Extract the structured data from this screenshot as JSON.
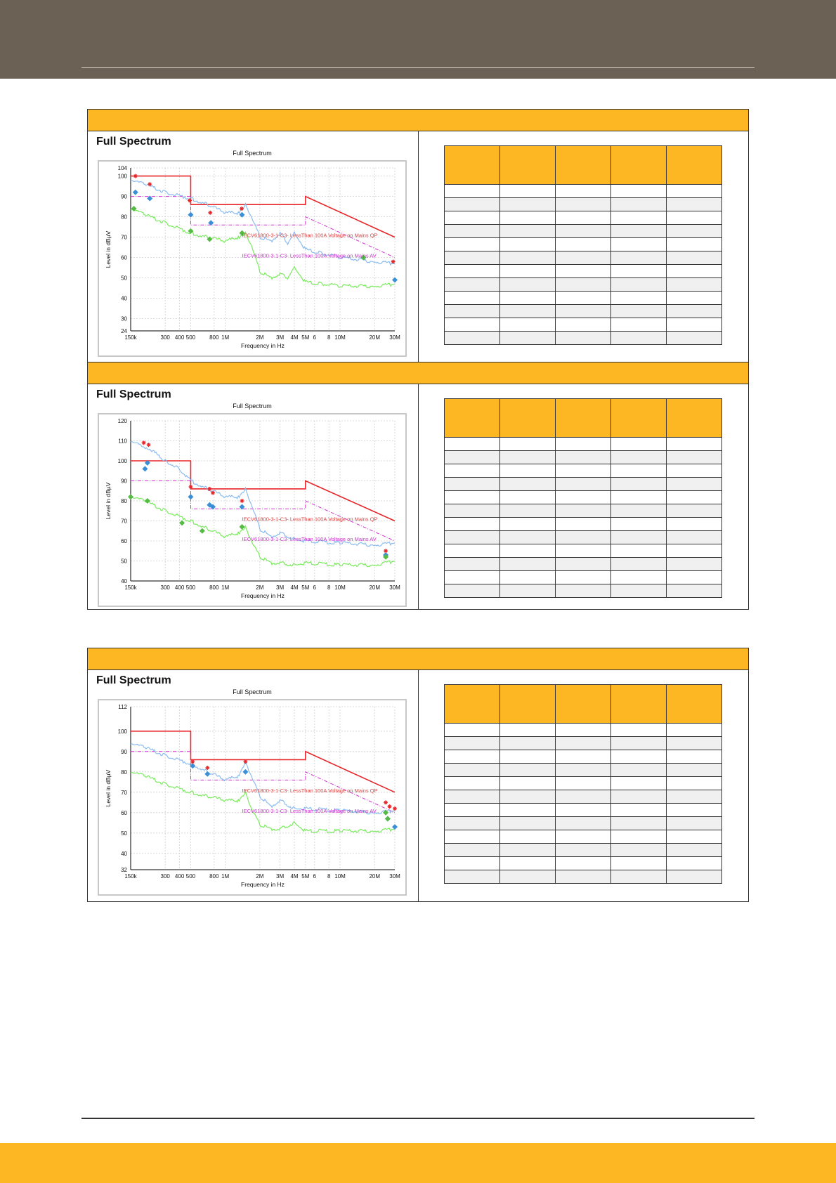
{
  "panels": [
    {
      "heading": "Full Spectrum",
      "chart_data": {
        "type": "line",
        "title": "Full Spectrum",
        "xlabel": "Frequency in Hz",
        "ylabel": "Level in dBµV",
        "xscale": "log",
        "xlim": [
          150000,
          30000000
        ],
        "ylim": [
          24,
          104
        ],
        "x_ticks": [
          "150k",
          "300",
          "400",
          "500",
          "800",
          "1M",
          "2M",
          "3M",
          "4M",
          "5M",
          "6",
          "8",
          "10M",
          "20M",
          "30M"
        ],
        "y_ticks": [
          24,
          30,
          40,
          50,
          60,
          70,
          80,
          90,
          100,
          104
        ],
        "annotations": [
          "IECV61800-3-1-C3- LessThan 100A Voltage on Mains QP",
          "IECV61800-3-1-C3- LessThan 100A Voltage on Mains AV"
        ],
        "series": [
          {
            "color": "#e8262a",
            "style": "limit",
            "x": [
              150000,
              500000,
              500000,
              5000000,
              5000000,
              30000000
            ],
            "y": [
              100,
              100,
              86,
              86,
              90,
              70
            ]
          },
          {
            "color": "#cc33cc",
            "style": "limit-dashed",
            "x": [
              150000,
              500000,
              500000,
              5000000,
              5000000,
              30000000
            ],
            "y": [
              90,
              90,
              76,
              76,
              80,
              60
            ]
          },
          {
            "color": "#8cbcf0",
            "style": "trace",
            "x": [
              150000,
              200000,
              300000,
              500000,
              700000,
              1000000,
              1300000,
              1500000,
              1700000,
              2000000,
              2500000,
              3000000,
              3500000,
              4000000,
              5000000,
              7000000,
              10000000,
              20000000,
              30000000
            ],
            "y": [
              98,
              96,
              92,
              89,
              86,
              82,
              82,
              86,
              80,
              70,
              68,
              72,
              67,
              72,
              64,
              62,
              60,
              58,
              57
            ]
          },
          {
            "color": "#7aeb5e",
            "style": "trace",
            "x": [
              150000,
              200000,
              300000,
              500000,
              700000,
              1000000,
              1300000,
              1500000,
              1700000,
              2000000,
              2500000,
              3000000,
              3500000,
              4000000,
              5000000,
              7000000,
              10000000,
              20000000,
              30000000
            ],
            "y": [
              84,
              81,
              77,
              72,
              70,
              68,
              70,
              72,
              66,
              53,
              50,
              52,
              50,
              55,
              48,
              47,
              46,
              46,
              47
            ]
          },
          {
            "color": "#3a8fd6",
            "style": "markers-diamond",
            "x": [
              165000,
              220000,
              500000,
              750000,
              1400000,
              30000000
            ],
            "y": [
              92,
              89,
              81,
              77,
              81,
              49
            ]
          },
          {
            "color": "#55bb44",
            "style": "markers-diamond",
            "x": [
              160000,
              500000,
              730000,
              1400000,
              16000000
            ],
            "y": [
              84,
              73,
              69,
              72,
              60
            ]
          },
          {
            "color": "#e8262a",
            "style": "markers-star",
            "x": [
              165000,
              220000,
              490000,
              740000,
              1390000,
              29000000
            ],
            "y": [
              100,
              96,
              88,
              82,
              84,
              58
            ]
          }
        ]
      }
    },
    {
      "heading": "Full Spectrum",
      "chart_data": {
        "type": "line",
        "title": "Full Spectrum",
        "xlabel": "Frequency in Hz",
        "ylabel": "Level in dBµV",
        "xscale": "log",
        "xlim": [
          150000,
          30000000
        ],
        "ylim": [
          40,
          120
        ],
        "x_ticks": [
          "150k",
          "300",
          "400",
          "500",
          "800",
          "1M",
          "2M",
          "3M",
          "4M",
          "5M",
          "6",
          "8",
          "10M",
          "20M",
          "30M"
        ],
        "y_ticks": [
          40,
          50,
          60,
          70,
          80,
          90,
          100,
          110,
          120
        ],
        "annotations": [
          "IECV61800-3-1-C3- LessThan 100A Voltage on Mains QP",
          "IECV61800-3-1-C3- LessThan 100A Voltage on Mains AV"
        ],
        "series": [
          {
            "color": "#e8262a",
            "style": "limit",
            "x": [
              150000,
              500000,
              500000,
              5000000,
              5000000,
              30000000
            ],
            "y": [
              100,
              100,
              86,
              86,
              90,
              70
            ]
          },
          {
            "color": "#cc33cc",
            "style": "limit-dashed",
            "x": [
              150000,
              500000,
              500000,
              5000000,
              5000000,
              30000000
            ],
            "y": [
              90,
              90,
              76,
              76,
              80,
              60
            ]
          },
          {
            "color": "#8cbcf0",
            "style": "trace",
            "x": [
              150000,
              180000,
              220000,
              300000,
              400000,
              500000,
              700000,
              1000000,
              1300000,
              1500000,
              1700000,
              2000000,
              2500000,
              3000000,
              4000000,
              5000000,
              10000000,
              20000000,
              30000000
            ],
            "y": [
              110,
              108,
              106,
              100,
              96,
              90,
              86,
              82,
              82,
              86,
              78,
              66,
              62,
              64,
              61,
              60,
              59,
              58,
              59
            ]
          },
          {
            "color": "#7aeb5e",
            "style": "trace",
            "x": [
              150000,
              200000,
              300000,
              500000,
              700000,
              1000000,
              1300000,
              1500000,
              1700000,
              2000000,
              2500000,
              3000000,
              4000000,
              5000000,
              10000000,
              20000000,
              30000000
            ],
            "y": [
              82,
              80,
              75,
              70,
              66,
              62,
              64,
              67,
              60,
              52,
              49,
              49,
              48,
              49,
              48,
              48,
              50
            ]
          },
          {
            "color": "#3a8fd6",
            "style": "markers-diamond",
            "x": [
              200000,
              210000,
              500000,
              730000,
              780000,
              1400000,
              25000000
            ],
            "y": [
              96,
              99,
              82,
              78,
              77,
              77,
              53
            ]
          },
          {
            "color": "#55bb44",
            "style": "markers-diamond",
            "x": [
              150000,
              210000,
              420000,
              630000,
              1400000,
              25000000
            ],
            "y": [
              82,
              80,
              69,
              65,
              67,
              52
            ]
          },
          {
            "color": "#e8262a",
            "style": "markers-star",
            "x": [
              195000,
              215000,
              500000,
              730000,
              780000,
              1400000,
              25000000
            ],
            "y": [
              109,
              108,
              87,
              86,
              84,
              80,
              55
            ]
          }
        ]
      }
    },
    {
      "heading": "Full Spectrum",
      "chart_data": {
        "type": "line",
        "title": "Full Spectrum",
        "xlabel": "Frequency in Hz",
        "ylabel": "Level in dBµV",
        "xscale": "log",
        "xlim": [
          150000,
          30000000
        ],
        "ylim": [
          32,
          112
        ],
        "x_ticks": [
          "150k",
          "300",
          "400",
          "500",
          "800",
          "1M",
          "2M",
          "3M",
          "4M",
          "5M",
          "6",
          "8",
          "10M",
          "20M",
          "30M"
        ],
        "y_ticks": [
          32,
          40,
          50,
          60,
          70,
          80,
          90,
          100,
          112
        ],
        "annotations": [
          "IECV61800-3-1-C3- LessThan 100A Voltage on Mains QP",
          "IECV61800-3-1-C3- LessThan 100A Voltage on Mains AV"
        ],
        "series": [
          {
            "color": "#e8262a",
            "style": "limit",
            "x": [
              150000,
              500000,
              500000,
              5000000,
              5000000,
              30000000
            ],
            "y": [
              100,
              100,
              86,
              86,
              90,
              70
            ]
          },
          {
            "color": "#cc33cc",
            "style": "limit-dashed",
            "x": [
              150000,
              500000,
              500000,
              5000000,
              5000000,
              30000000
            ],
            "y": [
              90,
              90,
              76,
              76,
              80,
              60
            ]
          },
          {
            "color": "#8cbcf0",
            "style": "trace",
            "x": [
              150000,
              200000,
              300000,
              500000,
              700000,
              1000000,
              1300000,
              1500000,
              1700000,
              2000000,
              2500000,
              3000000,
              4000000,
              5000000,
              10000000,
              20000000,
              30000000
            ],
            "y": [
              94,
              92,
              88,
              84,
              80,
              76,
              78,
              85,
              78,
              68,
              63,
              66,
              62,
              62,
              61,
              60,
              61
            ]
          },
          {
            "color": "#7aeb5e",
            "style": "trace",
            "x": [
              150000,
              200000,
              300000,
              500000,
              700000,
              1000000,
              1300000,
              1500000,
              1700000,
              2000000,
              2500000,
              3000000,
              4000000,
              5000000,
              10000000,
              20000000,
              30000000
            ],
            "y": [
              80,
              78,
              74,
              70,
              68,
              66,
              66,
              70,
              62,
              54,
              52,
              52,
              55,
              51,
              51,
              51,
              52
            ]
          },
          {
            "color": "#3a8fd6",
            "style": "markers-diamond",
            "x": [
              520000,
              700000,
              1500000,
              26000000,
              30000000
            ],
            "y": [
              83,
              79,
              80,
              57,
              53
            ]
          },
          {
            "color": "#55bb44",
            "style": "markers-diamond",
            "x": [
              25000000,
              26000000
            ],
            "y": [
              60,
              57
            ]
          },
          {
            "color": "#e8262a",
            "style": "markers-star",
            "x": [
              520000,
              700000,
              1500000,
              25000000,
              27000000,
              30000000
            ],
            "y": [
              85,
              82,
              85,
              65,
              63,
              62
            ]
          }
        ]
      }
    }
  ]
}
